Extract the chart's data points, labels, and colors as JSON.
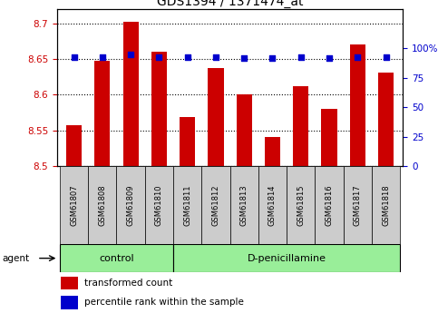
{
  "title": "GDS1394 / 1371474_at",
  "samples": [
    "GSM61807",
    "GSM61808",
    "GSM61809",
    "GSM61810",
    "GSM61811",
    "GSM61812",
    "GSM61813",
    "GSM61814",
    "GSM61815",
    "GSM61816",
    "GSM61817",
    "GSM61818"
  ],
  "bar_values": [
    8.557,
    8.648,
    8.703,
    8.661,
    8.569,
    8.638,
    8.601,
    8.54,
    8.612,
    8.58,
    8.671,
    8.631
  ],
  "percentile_values": [
    93,
    93,
    95,
    93,
    93,
    93,
    92,
    92,
    93,
    92,
    93,
    93
  ],
  "bar_bottom": 8.5,
  "ylim_left": [
    8.5,
    8.72
  ],
  "ylim_right": [
    0,
    133.33
  ],
  "yticks_left": [
    8.5,
    8.55,
    8.6,
    8.65,
    8.7
  ],
  "yticks_right": [
    0,
    25,
    50,
    75,
    100
  ],
  "ytick_labels_right": [
    "0",
    "25",
    "50",
    "75",
    "100%"
  ],
  "bar_color": "#cc0000",
  "dot_color": "#0000cc",
  "control_label": "control",
  "treatment_label": "D-penicillamine",
  "agent_label": "agent",
  "n_control": 4,
  "n_treatment": 8,
  "legend_bar_label": "transformed count",
  "legend_dot_label": "percentile rank within the sample",
  "group_box_color": "#99ee99",
  "sample_box_color": "#cccccc",
  "background_color": "#ffffff",
  "title_fontsize": 10,
  "tick_fontsize": 7.5,
  "sample_fontsize": 6,
  "group_fontsize": 8,
  "legend_fontsize": 7.5
}
